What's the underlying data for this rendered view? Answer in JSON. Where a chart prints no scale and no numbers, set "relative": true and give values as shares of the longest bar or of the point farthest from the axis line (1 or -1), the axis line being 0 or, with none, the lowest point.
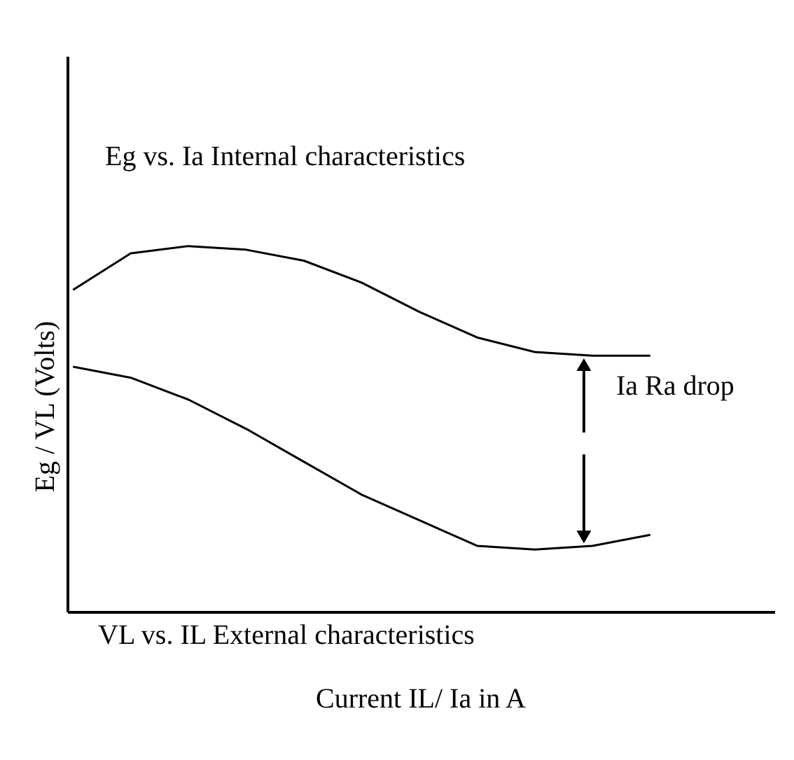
{
  "chart_data": {
    "type": "line",
    "relative": true,
    "xlabel": "Current  IL/ Ia in A",
    "ylabel": "Eg / VL (Volts)",
    "categories": [
      null,
      null,
      null,
      null,
      null,
      null,
      null,
      null,
      null,
      null,
      null
    ],
    "series": [
      {
        "color": "#000000",
        "values": [
          0.88,
          0.98,
          1.0,
          0.99,
          0.96,
          0.9,
          0.82,
          0.75,
          0.71,
          0.7,
          0.7
        ]
      },
      {
        "color": "#000000",
        "values": [
          0.67,
          0.64,
          0.58,
          0.5,
          0.41,
          0.32,
          0.25,
          0.18,
          0.17,
          0.18,
          0.21
        ]
      }
    ],
    "annotations": [
      "Eg vs. Ia Internal characteristics",
      "VL vs. IL External characteristics",
      "Ia Ra drop"
    ],
    "marker": "none",
    "line_style": "solid"
  }
}
